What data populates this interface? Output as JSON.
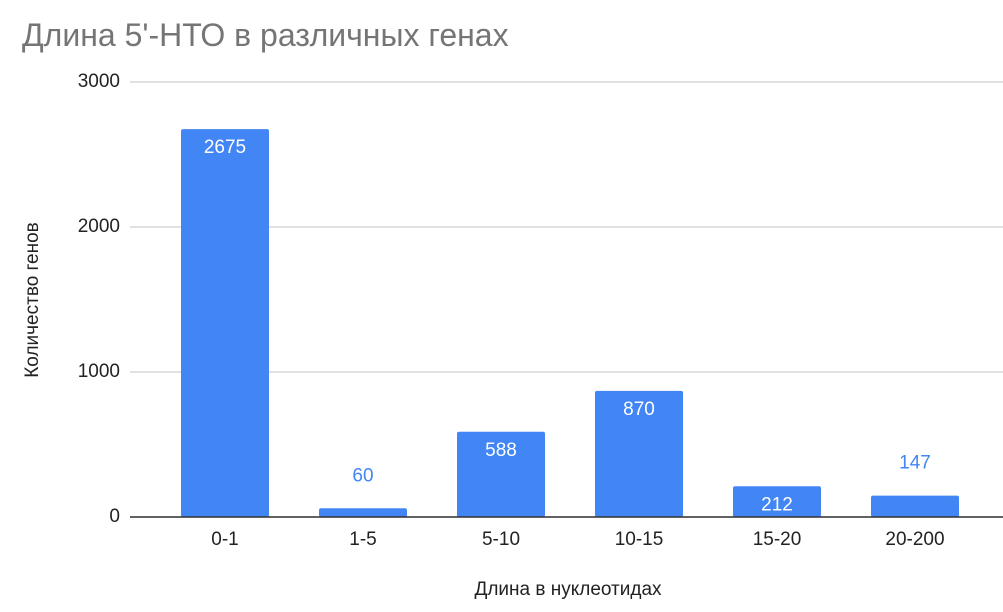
{
  "chart_data": {
    "type": "bar",
    "title": "Длина 5'-НТО в различных генах",
    "x_label": "Длина в нуклеотидах",
    "y_label": "Количество генов",
    "categories": [
      "0-1",
      "1-5",
      "5-10",
      "10-15",
      "15-20",
      "20-200"
    ],
    "values": [
      2675,
      60,
      588,
      870,
      212,
      147
    ],
    "color": "#4285f4",
    "ylim": [
      0,
      3000
    ],
    "yticks": [
      0,
      1000,
      2000,
      3000
    ],
    "grid": true
  }
}
